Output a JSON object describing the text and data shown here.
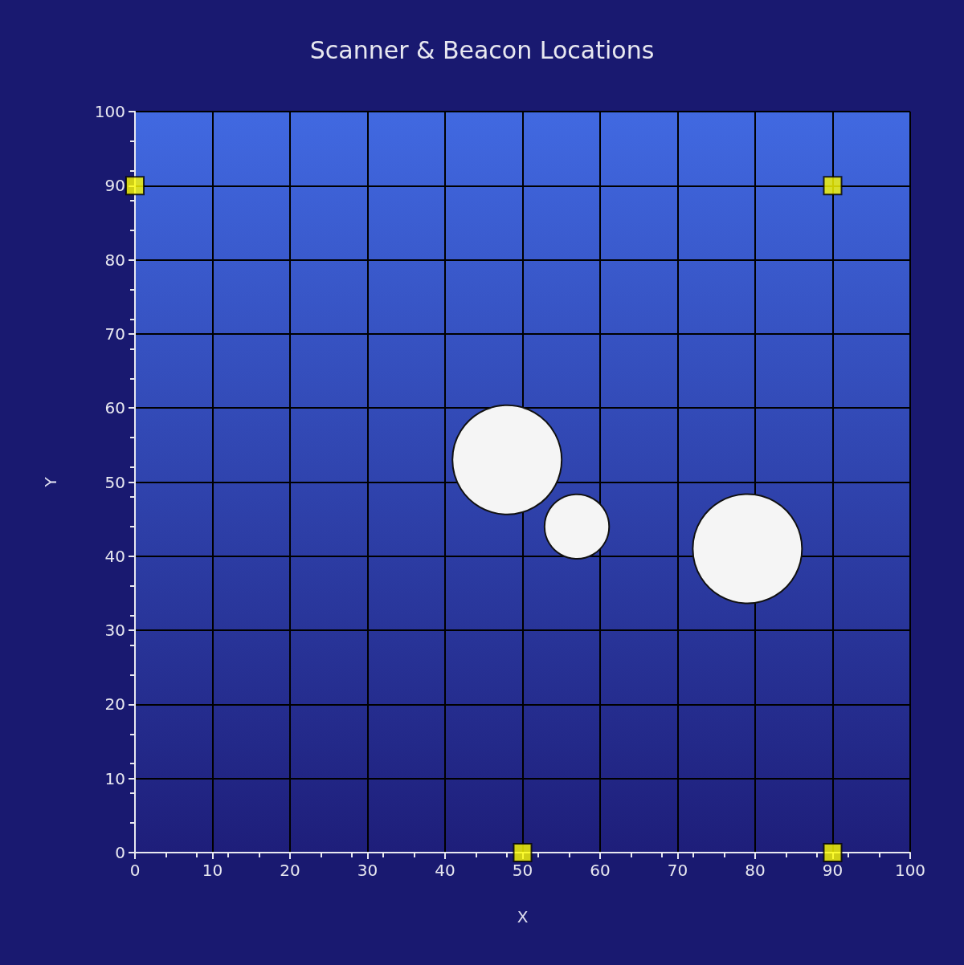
{
  "chart_data": {
    "type": "bubble",
    "title": "Scanner & Beacon Locations",
    "xlabel": "X",
    "ylabel": "Y",
    "xlim": [
      0,
      100
    ],
    "ylim": [
      0,
      100
    ],
    "xticks": [
      0,
      10,
      20,
      30,
      40,
      50,
      60,
      70,
      80,
      90,
      100
    ],
    "yticks": [
      0,
      10,
      20,
      30,
      40,
      50,
      60,
      70,
      80,
      90,
      100
    ],
    "grid": true,
    "series": [
      {
        "type": "scatter",
        "marker": "square",
        "color": "#ffff00",
        "x": [
          0,
          90,
          50,
          90
        ],
        "values": [
          90,
          90,
          0,
          0
        ]
      },
      {
        "marker": "circle",
        "color": "#f5f5f5",
        "x": [
          48,
          57,
          79
        ],
        "values": [
          53,
          44,
          41
        ],
        "sizes": [
          1,
          0.35,
          1
        ]
      }
    ]
  }
}
